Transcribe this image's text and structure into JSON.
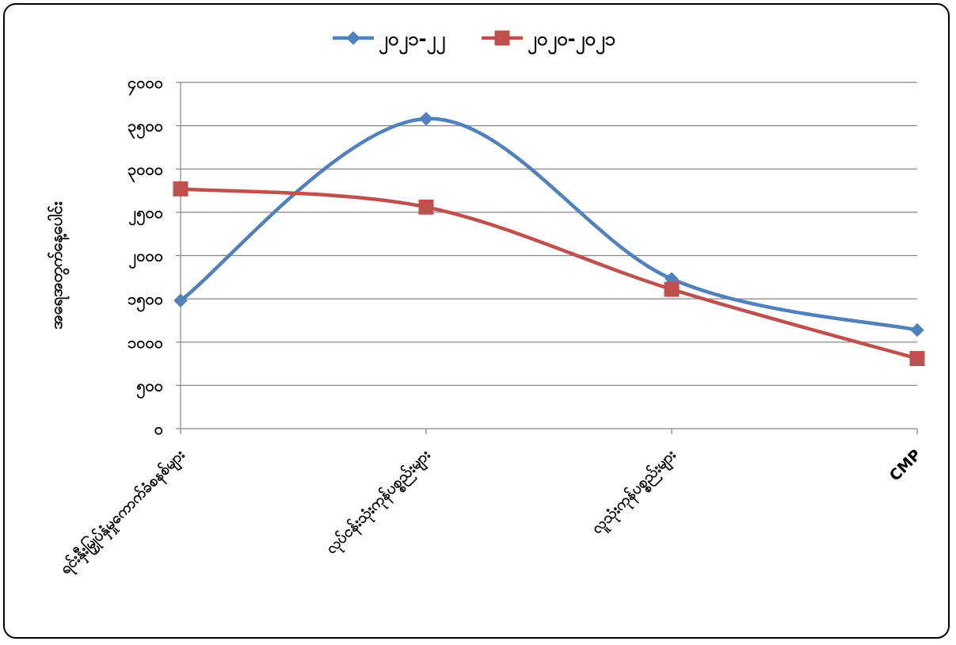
{
  "chart_data": {
    "type": "line",
    "smooth": true,
    "title": "",
    "xlabel": "",
    "ylabel": "အရေအတွက်နေ့ပေါင်း",
    "ylim": [
      0,
      4000
    ],
    "yticks": [
      {
        "value": 0,
        "label": "၀"
      },
      {
        "value": 500,
        "label": "၅၀၀"
      },
      {
        "value": 1000,
        "label": "၁၀၀၀"
      },
      {
        "value": 1500,
        "label": "၁၅၀၀"
      },
      {
        "value": 2000,
        "label": "၂၀၀၀"
      },
      {
        "value": 2500,
        "label": "၂၅၀၀"
      },
      {
        "value": 3000,
        "label": "၃၀၀၀"
      },
      {
        "value": 3500,
        "label": "၃၅၀၀"
      },
      {
        "value": 4000,
        "label": "၄၀၀၀"
      }
    ],
    "categories": [
      "ရင်းနှီးမြှုပ်နှံမှုကောက်ခံစနစ်များ",
      "လုပ်ငန်းသုံးကုန်ပစ္စည်းများ",
      "လူသုံးကုန်ပစ္စည်းများ",
      "CMP"
    ],
    "series": [
      {
        "name": "၂၀၂၁-၂၂",
        "color": "#4F81BD",
        "marker": "diamond",
        "values": [
          1480,
          3580,
          1730,
          1140
        ]
      },
      {
        "name": "၂၀၂၀-၂၀၂၁",
        "color": "#C0504D",
        "marker": "square",
        "values": [
          2770,
          2560,
          1610,
          810
        ]
      }
    ],
    "grid": true,
    "legend_position": "top"
  }
}
